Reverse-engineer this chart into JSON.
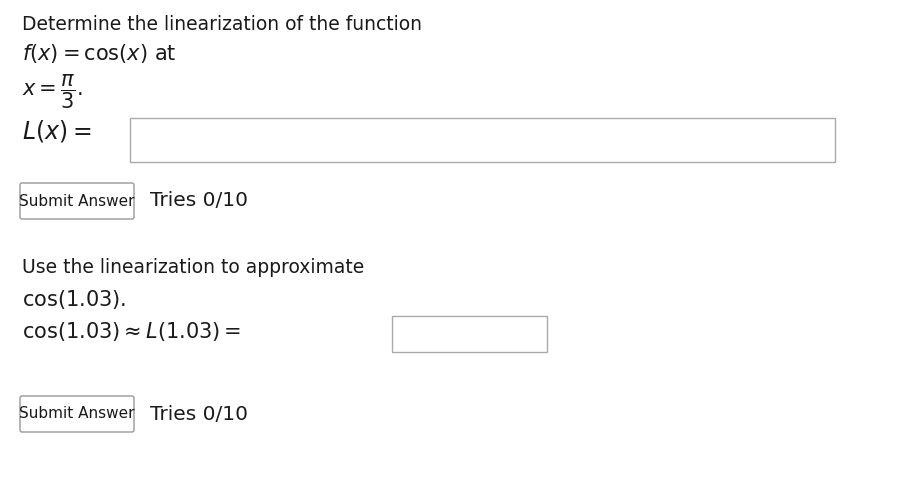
{
  "bg_color": "#ffffff",
  "title_line1": "Determine the linearization of the function",
  "title_line2": "$f(x) = \\cos(x)$ at",
  "title_line3": "$x = \\dfrac{\\pi}{3}.$",
  "lx_label": "$L(x) =$",
  "submit_btn1_text": "Submit Answer",
  "tries1_text": "Tries 0/10",
  "section2_line1": "Use the linearization to approximate",
  "section2_line2": "$\\cos(1.03).$",
  "section2_line3": "$\\cos(1.03) \\approx L(1.03) =$",
  "submit_btn2_text": "Submit Answer",
  "tries2_text": "Tries 0/10",
  "text_color": "#1a1a1a",
  "box_border_color": "#aaaaaa",
  "btn_border_color": "#999999",
  "font_size_title": 13.5,
  "font_size_math": 15,
  "font_size_body": 13.5,
  "font_size_btn": 11
}
